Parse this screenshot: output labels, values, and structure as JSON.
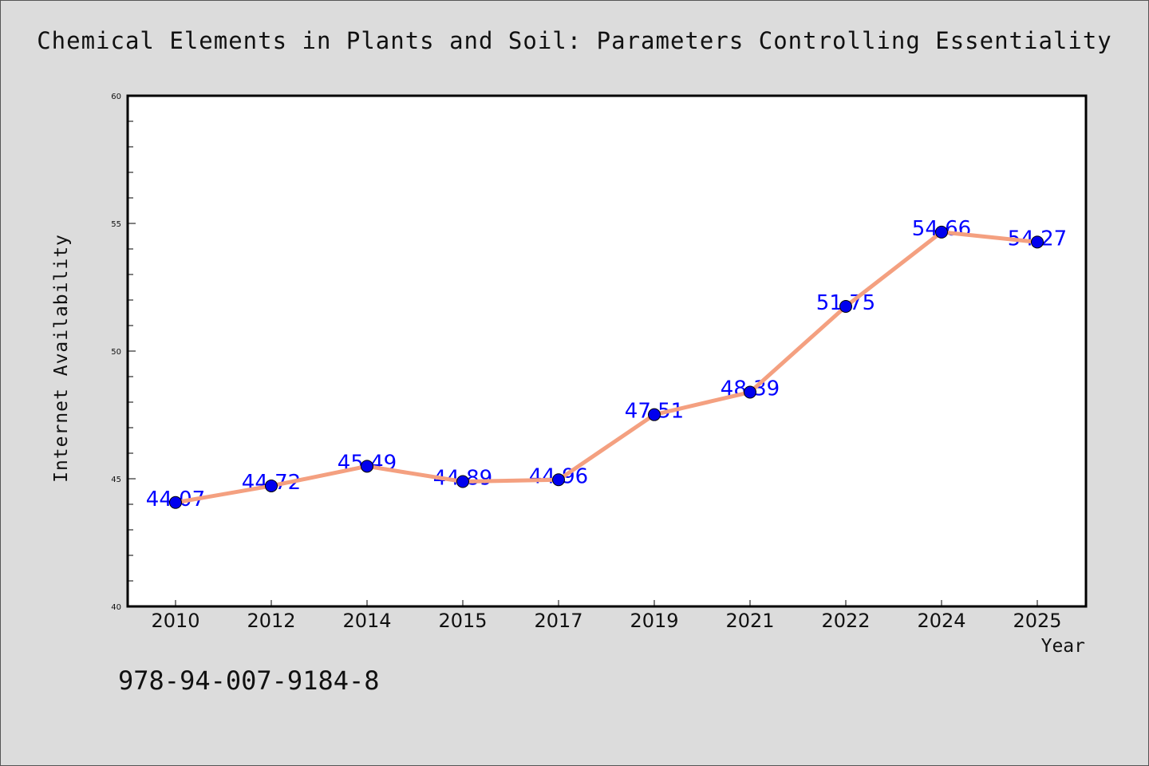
{
  "chart_data": {
    "type": "line",
    "title": "Chemical Elements in Plants and Soil: Parameters Controlling Essentiality",
    "xlabel": "Year",
    "ylabel": "Internet Availability",
    "categories": [
      "2010",
      "2012",
      "2014",
      "2015",
      "2017",
      "2019",
      "2021",
      "2022",
      "2024",
      "2025"
    ],
    "series": [
      {
        "values": [
          44.07,
          44.72,
          45.49,
          44.89,
          44.96,
          47.51,
          48.39,
          51.75,
          54.66,
          54.27
        ],
        "line_color": "#f4a080",
        "marker_color": "#0000ee"
      }
    ],
    "data_labels": [
      "44.07",
      "44.72",
      "45.49",
      "44.89",
      "44.96",
      "47.51",
      "48.39",
      "51.75",
      "54.66",
      "54.27"
    ],
    "ylim": [
      40,
      60
    ],
    "y_ticks": [
      "40",
      "45",
      "50",
      "55",
      "60"
    ],
    "grid": false,
    "label_color": "#0000ff"
  },
  "footnote": "978-94-007-9184-8"
}
